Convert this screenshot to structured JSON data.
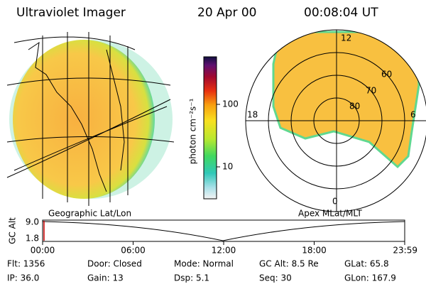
{
  "header": {
    "title": "Ultraviolet Imager",
    "date": "20 Apr 00",
    "time": "00:08:04 UT"
  },
  "colorbar": {
    "label": "photon cm⁻²s⁻¹",
    "ticks": [
      "100",
      "10"
    ]
  },
  "polar": {
    "labels": {
      "top": "12",
      "left": "18",
      "right": "6",
      "bottom": "0"
    },
    "circles": [
      "60",
      "70",
      "80"
    ]
  },
  "projections": {
    "left": "Geographic Lat/Lon",
    "right": "Apex MLat/MLT"
  },
  "altitude_plot": {
    "axis_label": "GC Alt",
    "yticks": [
      "9.0",
      "1.8"
    ],
    "xticks": [
      "00:00",
      "06:00",
      "12:00",
      "18:00",
      "23:59"
    ]
  },
  "info": {
    "rows": [
      [
        "Flt: 1356",
        "Door: Closed",
        "Mode: Normal",
        "GC Alt: 8.5 Re",
        "GLat: 65.8"
      ],
      [
        "IP: 36.0",
        "Gain: 13",
        "Dsp: 5.1",
        "Seq: 30",
        "GLon: 167.9"
      ]
    ]
  }
}
